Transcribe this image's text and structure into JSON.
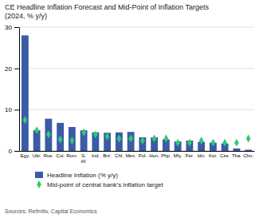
{
  "chart_data": {
    "type": "bar",
    "title": "CE Headline Inflation Forecast and Mid-Point of Inflation Targets\n(2024, % y/y)",
    "categories": [
      "Egy.",
      "Ukr.",
      "Rus.",
      "Col.",
      "Rom.",
      "S.\nAf.",
      "Ind.",
      "Brz.",
      "Chl.",
      "Mex.",
      "Pol.",
      "Hun.",
      "Php.",
      "Mly.",
      "Per.",
      "Idn.",
      "Kor.",
      "Cze.",
      "Tha.",
      "Chn."
    ],
    "series": [
      {
        "name": "Headline Inflation (% y/y)",
        "type": "bar",
        "color": "#3B5BA5",
        "values": [
          28.0,
          5.0,
          7.8,
          6.8,
          5.8,
          5.0,
          4.5,
          4.4,
          4.5,
          4.6,
          3.3,
          3.3,
          2.8,
          2.3,
          2.5,
          2.2,
          2.0,
          1.8,
          0.6,
          0.3
        ]
      },
      {
        "name": "Mid-point of central bank's inflation target",
        "type": "scatter",
        "marker": "diamond",
        "color": "#2ECC71",
        "values": [
          7.5,
          5.0,
          4.0,
          2.8,
          2.5,
          4.5,
          4.0,
          3.5,
          3.0,
          3.0,
          2.5,
          3.0,
          3.0,
          2.0,
          2.0,
          2.5,
          2.0,
          2.0,
          2.0,
          3.0
        ]
      }
    ],
    "ylim": [
      0,
      30
    ],
    "yticks": [
      0,
      10,
      20,
      30
    ],
    "grid": true,
    "legend": "bottom",
    "annotations": [
      "Sources: Refinitiv, Capital Economics"
    ]
  }
}
